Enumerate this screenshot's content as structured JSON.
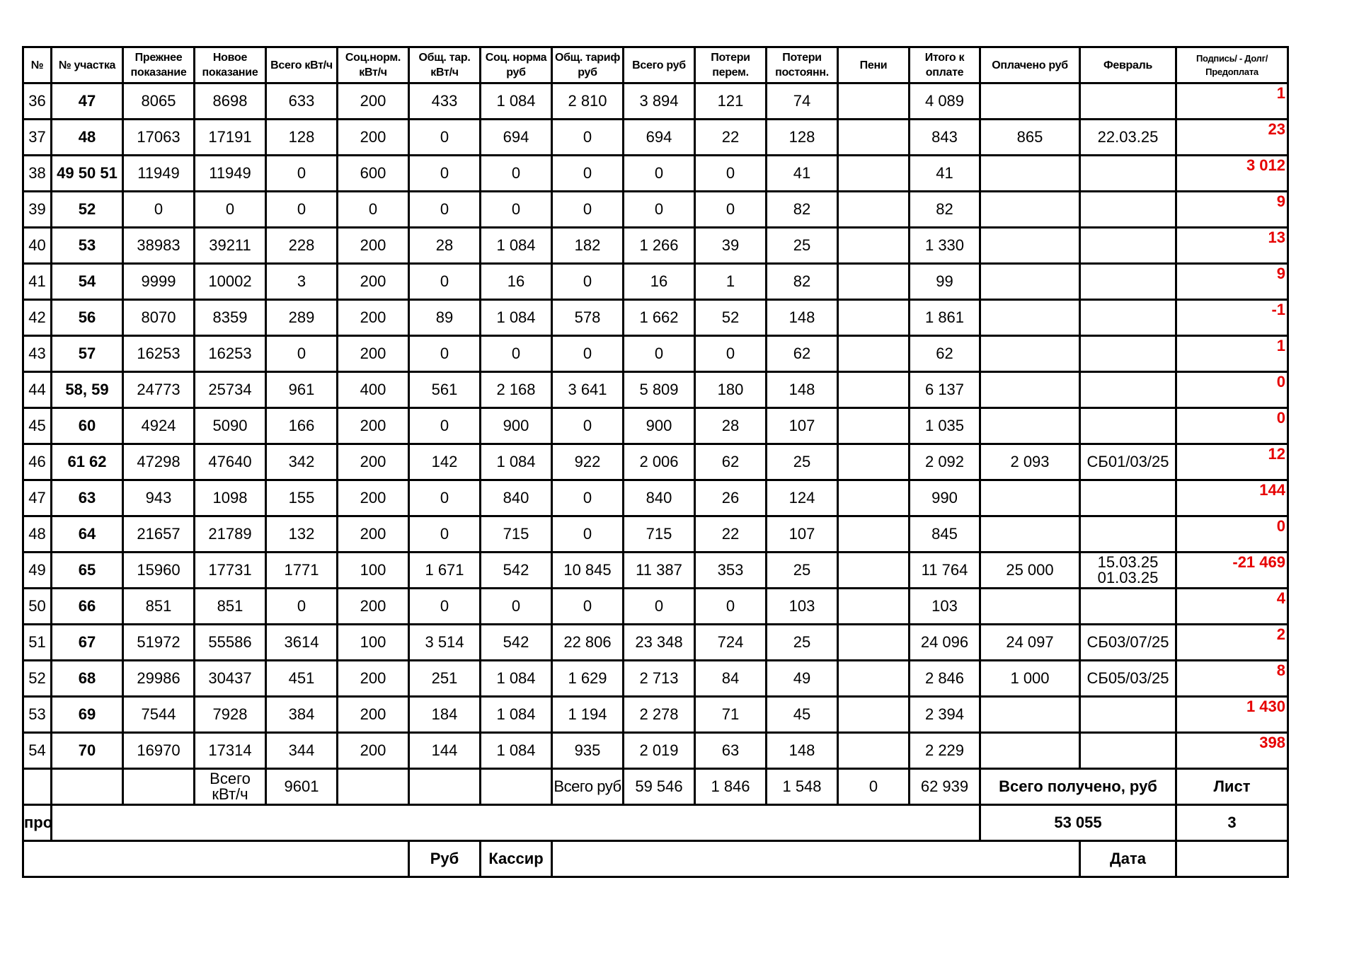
{
  "headers": [
    "№",
    "№ участка",
    "Прежнее показание",
    "Новое показание",
    "Всего кВт/ч",
    "Соц.норм. кВт/ч",
    "Общ. тар. кВт/ч",
    "Соц. норма руб",
    "Общ. тариф руб",
    "Всего руб",
    "Потери перем.",
    "Потери постоянн.",
    "Пени",
    "Итого к оплате",
    "Оплачено руб",
    "Февраль",
    "Подпись/ - Долг/Предоплата"
  ],
  "rows": [
    [
      "36",
      "47",
      "8065",
      "8698",
      "633",
      "200",
      "433",
      "1 084",
      "2 810",
      "3 894",
      "121",
      "74",
      "",
      "4 089",
      "",
      "",
      "1"
    ],
    [
      "37",
      "48",
      "17063",
      "17191",
      "128",
      "200",
      "0",
      "694",
      "0",
      "694",
      "22",
      "128",
      "",
      "843",
      "865",
      "22.03.25",
      "23"
    ],
    [
      "38",
      "49 50 51",
      "11949",
      "11949",
      "0",
      "600",
      "0",
      "0",
      "0",
      "0",
      "0",
      "41",
      "",
      "41",
      "",
      "",
      "3 012"
    ],
    [
      "39",
      "52",
      "0",
      "0",
      "0",
      "0",
      "0",
      "0",
      "0",
      "0",
      "0",
      "82",
      "",
      "82",
      "",
      "",
      "9"
    ],
    [
      "40",
      "53",
      "38983",
      "39211",
      "228",
      "200",
      "28",
      "1 084",
      "182",
      "1 266",
      "39",
      "25",
      "",
      "1 330",
      "",
      "",
      "13"
    ],
    [
      "41",
      "54",
      "9999",
      "10002",
      "3",
      "200",
      "0",
      "16",
      "0",
      "16",
      "1",
      "82",
      "",
      "99",
      "",
      "",
      "9"
    ],
    [
      "42",
      "56",
      "8070",
      "8359",
      "289",
      "200",
      "89",
      "1 084",
      "578",
      "1 662",
      "52",
      "148",
      "",
      "1 861",
      "",
      "",
      "-1"
    ],
    [
      "43",
      "57",
      "16253",
      "16253",
      "0",
      "200",
      "0",
      "0",
      "0",
      "0",
      "0",
      "62",
      "",
      "62",
      "",
      "",
      "1"
    ],
    [
      "44",
      "58, 59",
      "24773",
      "25734",
      "961",
      "400",
      "561",
      "2 168",
      "3 641",
      "5 809",
      "180",
      "148",
      "",
      "6 137",
      "",
      "",
      "0"
    ],
    [
      "45",
      "60",
      "4924",
      "5090",
      "166",
      "200",
      "0",
      "900",
      "0",
      "900",
      "28",
      "107",
      "",
      "1 035",
      "",
      "",
      "0"
    ],
    [
      "46",
      "61 62",
      "47298",
      "47640",
      "342",
      "200",
      "142",
      "1 084",
      "922",
      "2 006",
      "62",
      "25",
      "",
      "2 092",
      "2 093",
      "СБ01/03/25",
      "12"
    ],
    [
      "47",
      "63",
      "943",
      "1098",
      "155",
      "200",
      "0",
      "840",
      "0",
      "840",
      "26",
      "124",
      "",
      "990",
      "",
      "",
      "144"
    ],
    [
      "48",
      "64",
      "21657",
      "21789",
      "132",
      "200",
      "0",
      "715",
      "0",
      "715",
      "22",
      "107",
      "",
      "845",
      "",
      "",
      "0"
    ],
    [
      "49",
      "65",
      "15960",
      "17731",
      "1771",
      "100",
      "1 671",
      "542",
      "10 845",
      "11 387",
      "353",
      "25",
      "",
      "11 764",
      "25 000",
      "15.03.25 01.03.25",
      "-21 469"
    ],
    [
      "50",
      "66",
      "851",
      "851",
      "0",
      "200",
      "0",
      "0",
      "0",
      "0",
      "0",
      "103",
      "",
      "103",
      "",
      "",
      "4"
    ],
    [
      "51",
      "67",
      "51972",
      "55586",
      "3614",
      "100",
      "3 514",
      "542",
      "22 806",
      "23 348",
      "724",
      "25",
      "",
      "24 096",
      "24 097",
      "СБ03/07/25",
      "2"
    ],
    [
      "52",
      "68",
      "29986",
      "30437",
      "451",
      "200",
      "251",
      "1 084",
      "1 629",
      "2 713",
      "84",
      "49",
      "",
      "2 846",
      "1 000",
      "СБ05/03/25",
      "8"
    ],
    [
      "53",
      "69",
      "7544",
      "7928",
      "384",
      "200",
      "184",
      "1 084",
      "1 194",
      "2 278",
      "71",
      "45",
      "",
      "2 394",
      "",
      "",
      "1 430"
    ],
    [
      "54",
      "70",
      "16970",
      "17314",
      "344",
      "200",
      "144",
      "1 084",
      "935",
      "2 019",
      "63",
      "148",
      "",
      "2 229",
      "",
      "",
      "398"
    ]
  ],
  "totals": {
    "kwh_label": "Всего кВт/ч",
    "kwh": "9601",
    "rub_label": "Всего руб",
    "rub": "59 546",
    "loss_var": "1 846",
    "loss_const": "1 548",
    "penalty": "0",
    "due": "62 939",
    "received_label": "Всего получено, руб",
    "sheet_label": "Лист"
  },
  "summary": {
    "pro_label": "про",
    "received": "53 055",
    "sheet": "3"
  },
  "signature": {
    "rub_label": "Руб",
    "cashier_label": "Кассир",
    "date_label": "Дата"
  },
  "colors": {
    "debt": "#e60000"
  }
}
